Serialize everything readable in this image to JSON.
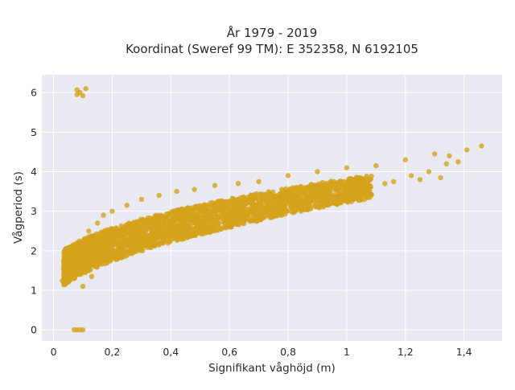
{
  "chart_data": {
    "type": "scatter",
    "title": "År 1979 - 2019",
    "subtitle": "Koordinat (Sweref 99 TM): E 352358, N 6192105",
    "xlabel": "Signifikant våghöjd (m)",
    "ylabel": "Vågperiod (s)",
    "xlim": [
      -0.04,
      1.53
    ],
    "ylim": [
      -0.28,
      6.45
    ],
    "x_ticks": [
      0,
      0.2,
      0.4,
      0.6,
      0.8,
      1,
      1.2,
      1.4
    ],
    "x_tick_labels": [
      "0",
      "0,2",
      "0,4",
      "0,6",
      "0,8",
      "1",
      "1,2",
      "1,4"
    ],
    "y_ticks": [
      0,
      1,
      2,
      3,
      4,
      5,
      6
    ],
    "y_tick_labels": [
      "0",
      "1",
      "2",
      "3",
      "4",
      "5",
      "6"
    ],
    "grid": true,
    "legend": "none",
    "colors": {
      "point": "#d4a21b",
      "plot_bg": "#e9e9f1",
      "grid": "#ffffff"
    },
    "series": [
      {
        "values_note_free": true,
        "points": [
          [
            0.03,
            1.24
          ],
          [
            0.04,
            1.3
          ],
          [
            0.05,
            1.45
          ],
          [
            0.05,
            1.6
          ],
          [
            0.06,
            1.3
          ],
          [
            0.07,
            1.5
          ],
          [
            0.08,
            1.75
          ],
          [
            0.09,
            1.9
          ],
          [
            0.1,
            1.1
          ],
          [
            0.1,
            2.2
          ],
          [
            0.12,
            1.5
          ],
          [
            0.12,
            2.5
          ],
          [
            0.13,
            1.35
          ],
          [
            0.14,
            2.1
          ],
          [
            0.15,
            2.7
          ],
          [
            0.16,
            1.7
          ],
          [
            0.17,
            2.9
          ],
          [
            0.18,
            2.2
          ],
          [
            0.2,
            1.8
          ],
          [
            0.2,
            3.0
          ],
          [
            0.22,
            2.4
          ],
          [
            0.24,
            2.0
          ],
          [
            0.25,
            3.15
          ],
          [
            0.27,
            2.6
          ],
          [
            0.28,
            2.1
          ],
          [
            0.3,
            3.3
          ],
          [
            0.32,
            2.7
          ],
          [
            0.34,
            2.3
          ],
          [
            0.36,
            3.4
          ],
          [
            0.38,
            2.8
          ],
          [
            0.4,
            2.4
          ],
          [
            0.42,
            3.5
          ],
          [
            0.44,
            2.9
          ],
          [
            0.46,
            2.5
          ],
          [
            0.48,
            3.55
          ],
          [
            0.5,
            3.0
          ],
          [
            0.52,
            2.6
          ],
          [
            0.55,
            3.65
          ],
          [
            0.58,
            3.1
          ],
          [
            0.6,
            2.75
          ],
          [
            0.63,
            3.7
          ],
          [
            0.65,
            3.2
          ],
          [
            0.68,
            2.85
          ],
          [
            0.7,
            3.75
          ],
          [
            0.73,
            3.3
          ],
          [
            0.76,
            3.0
          ],
          [
            0.8,
            3.9
          ],
          [
            0.83,
            3.35
          ],
          [
            0.86,
            3.2
          ],
          [
            0.9,
            4.0
          ],
          [
            0.93,
            3.45
          ],
          [
            0.96,
            3.35
          ],
          [
            1.0,
            4.1
          ],
          [
            1.03,
            3.55
          ],
          [
            1.06,
            3.5
          ],
          [
            1.1,
            4.15
          ],
          [
            1.13,
            3.7
          ],
          [
            1.16,
            3.75
          ],
          [
            1.2,
            4.3
          ],
          [
            1.22,
            3.9
          ],
          [
            1.25,
            3.8
          ],
          [
            1.28,
            4.0
          ],
          [
            1.3,
            4.45
          ],
          [
            1.32,
            3.85
          ],
          [
            1.34,
            4.2
          ],
          [
            1.35,
            4.4
          ],
          [
            1.38,
            4.25
          ],
          [
            1.41,
            4.55
          ],
          [
            1.46,
            4.65
          ],
          [
            0.08,
            6.07
          ],
          [
            0.08,
            5.95
          ],
          [
            0.09,
            6.0
          ],
          [
            0.1,
            5.92
          ],
          [
            0.11,
            6.1
          ],
          [
            0.07,
            0.0
          ],
          [
            0.08,
            0.0
          ],
          [
            0.09,
            0.0
          ],
          [
            0.1,
            0.0
          ]
        ]
      }
    ]
  }
}
